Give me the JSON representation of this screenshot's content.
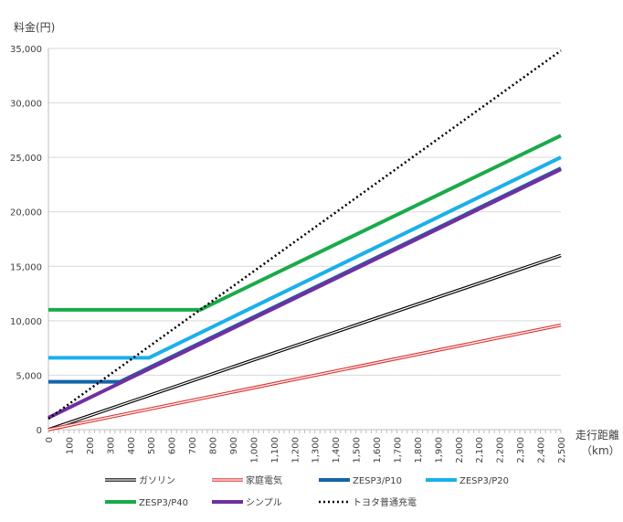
{
  "chart_data": {
    "type": "line",
    "ylabel": "料金(円)",
    "xlabel_line1": "走行距離",
    "xlabel_line2": "（km）",
    "xlim": [
      0,
      2500
    ],
    "ylim": [
      0,
      35000
    ],
    "y_ticks": [
      0,
      5000,
      10000,
      15000,
      20000,
      25000,
      30000,
      35000
    ],
    "y_tick_labels": [
      "0",
      "5,000",
      "10,000",
      "15,000",
      "20,000",
      "25,000",
      "30,000",
      "35,000"
    ],
    "x_ticks": [
      0,
      100,
      200,
      300,
      400,
      500,
      600,
      700,
      800,
      900,
      1000,
      1100,
      1200,
      1300,
      1400,
      1500,
      1600,
      1700,
      1800,
      1900,
      2000,
      2100,
      2200,
      2300,
      2400,
      2500
    ],
    "x_tick_labels": [
      "0",
      "100",
      "200",
      "300",
      "400",
      "500",
      "600",
      "700",
      "800",
      "900",
      "1,000",
      "1,100",
      "1,200",
      "1,300",
      "1,400",
      "1,500",
      "1,600",
      "1,700",
      "1,800",
      "1,900",
      "2,000",
      "2,100",
      "2,200",
      "2,300",
      "2,400",
      "2,500"
    ],
    "grid": "horizontal",
    "legend_position": "bottom",
    "series": [
      {
        "name": "ガソリン",
        "color": "#000000",
        "style": "double",
        "x": [
          0,
          2500
        ],
        "y": [
          0,
          16000
        ]
      },
      {
        "name": "家庭電気",
        "color": "#e03030",
        "style": "double",
        "x": [
          0,
          2500
        ],
        "y": [
          0,
          9600
        ]
      },
      {
        "name": "ZESP3/P10",
        "color": "#1464a8",
        "style": "thick",
        "x": [
          0,
          350,
          2500
        ],
        "y": [
          4400,
          4400,
          24000
        ]
      },
      {
        "name": "ZESP3/P20",
        "color": "#1ab0ec",
        "style": "thick",
        "x": [
          0,
          490,
          2500
        ],
        "y": [
          6600,
          6600,
          25000
        ]
      },
      {
        "name": "ZESP3/P40",
        "color": "#1aaa4a",
        "style": "thick",
        "x": [
          0,
          740,
          2500
        ],
        "y": [
          11000,
          11000,
          27000
        ]
      },
      {
        "name": "シンプル",
        "color": "#7030a0",
        "style": "thick",
        "x": [
          0,
          2500
        ],
        "y": [
          1100,
          23900
        ]
      },
      {
        "name": "トヨタ普通充電",
        "color": "#000000",
        "style": "dotted",
        "x": [
          0,
          2500
        ],
        "y": [
          1000,
          34800
        ]
      }
    ]
  }
}
